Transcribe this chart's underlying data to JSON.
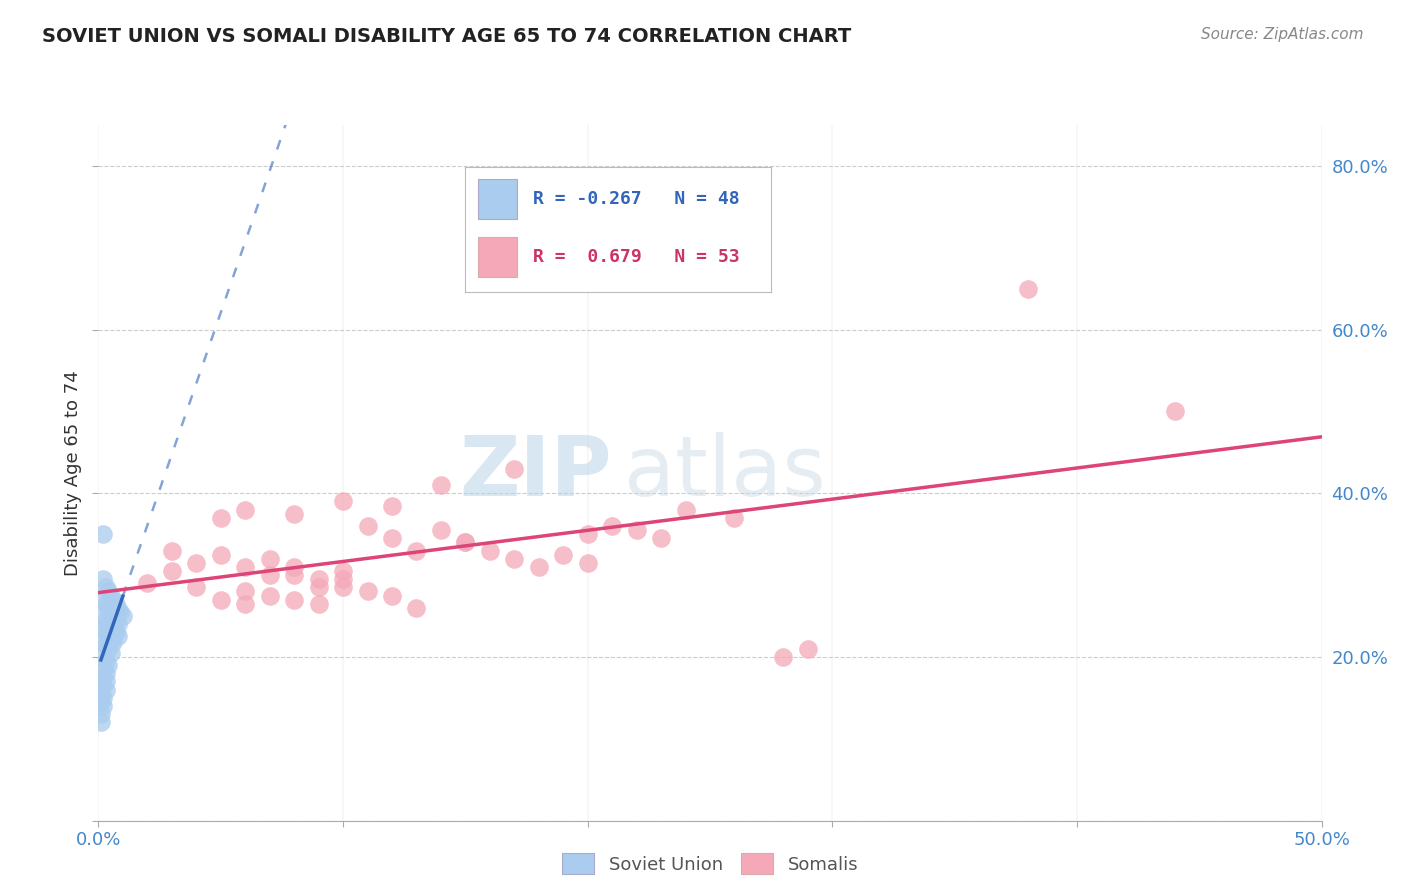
{
  "title": "SOVIET UNION VS SOMALI DISABILITY AGE 65 TO 74 CORRELATION CHART",
  "source": "Source: ZipAtlas.com",
  "ylabel": "Disability Age 65 to 74",
  "xlim": [
    0.0,
    0.5
  ],
  "ylim": [
    0.0,
    0.85
  ],
  "soviet_color": "#aaccee",
  "somali_color": "#f4a8b8",
  "soviet_line_color": "#3366bb",
  "somali_line_color": "#dd4477",
  "watermark_zip": "ZIP",
  "watermark_atlas": "atlas",
  "soviet_x": [
    0.002,
    0.003,
    0.004,
    0.005,
    0.006,
    0.007,
    0.008,
    0.009,
    0.01,
    0.002,
    0.003,
    0.004,
    0.005,
    0.006,
    0.007,
    0.008,
    0.002,
    0.003,
    0.004,
    0.005,
    0.006,
    0.007,
    0.008,
    0.002,
    0.003,
    0.004,
    0.005,
    0.006,
    0.002,
    0.003,
    0.004,
    0.005,
    0.002,
    0.003,
    0.004,
    0.002,
    0.003,
    0.002,
    0.003,
    0.002,
    0.003,
    0.001,
    0.002,
    0.001,
    0.002,
    0.001,
    0.001,
    0.002
  ],
  "soviet_y": [
    0.295,
    0.285,
    0.28,
    0.275,
    0.27,
    0.265,
    0.258,
    0.255,
    0.25,
    0.27,
    0.265,
    0.26,
    0.255,
    0.25,
    0.245,
    0.24,
    0.25,
    0.245,
    0.242,
    0.238,
    0.235,
    0.23,
    0.225,
    0.235,
    0.23,
    0.225,
    0.22,
    0.218,
    0.218,
    0.215,
    0.21,
    0.205,
    0.2,
    0.195,
    0.19,
    0.185,
    0.18,
    0.175,
    0.17,
    0.165,
    0.16,
    0.155,
    0.15,
    0.145,
    0.14,
    0.13,
    0.12,
    0.35
  ],
  "somali_x": [
    0.02,
    0.03,
    0.04,
    0.05,
    0.06,
    0.07,
    0.08,
    0.09,
    0.1,
    0.03,
    0.04,
    0.05,
    0.06,
    0.07,
    0.08,
    0.09,
    0.1,
    0.06,
    0.07,
    0.08,
    0.09,
    0.1,
    0.11,
    0.12,
    0.13,
    0.11,
    0.12,
    0.13,
    0.14,
    0.15,
    0.15,
    0.16,
    0.17,
    0.18,
    0.19,
    0.2,
    0.05,
    0.06,
    0.08,
    0.1,
    0.12,
    0.24,
    0.26,
    0.2,
    0.21,
    0.22,
    0.23,
    0.14,
    0.17,
    0.28,
    0.29,
    0.44,
    0.38
  ],
  "somali_y": [
    0.29,
    0.305,
    0.285,
    0.27,
    0.265,
    0.3,
    0.31,
    0.285,
    0.295,
    0.33,
    0.315,
    0.325,
    0.31,
    0.32,
    0.3,
    0.295,
    0.305,
    0.28,
    0.275,
    0.27,
    0.265,
    0.285,
    0.28,
    0.275,
    0.26,
    0.36,
    0.345,
    0.33,
    0.355,
    0.34,
    0.34,
    0.33,
    0.32,
    0.31,
    0.325,
    0.315,
    0.37,
    0.38,
    0.375,
    0.39,
    0.385,
    0.38,
    0.37,
    0.35,
    0.36,
    0.355,
    0.345,
    0.41,
    0.43,
    0.2,
    0.21,
    0.5,
    0.65
  ]
}
